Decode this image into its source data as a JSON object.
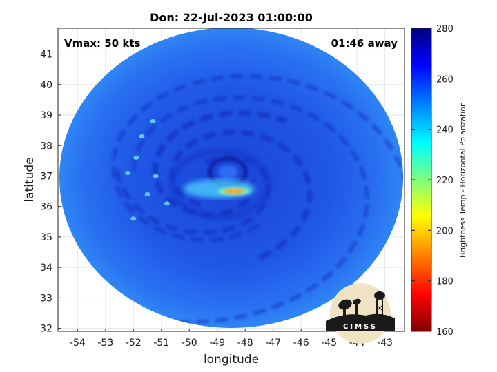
{
  "chart_data": {
    "type": "heatmap",
    "title": "Don: 22-Jul-2023 01:00:00",
    "xlabel": "longitude",
    "ylabel": "latitude",
    "xlim": [
      -54.7,
      -42.3
    ],
    "ylim": [
      31.9,
      41.85
    ],
    "xticks": [
      -54,
      -53,
      -52,
      -51,
      -50,
      -49,
      -48,
      -47,
      -46,
      -45,
      -44,
      -43
    ],
    "yticks": [
      32,
      33,
      34,
      35,
      36,
      37,
      38,
      39,
      40,
      41
    ],
    "grid": true,
    "storm_center": {
      "lon": -48.9,
      "lat": 36.85
    },
    "warm_core": {
      "lon": -48.4,
      "lat": 36.5,
      "value": 190
    },
    "annotations": {
      "vmax": "Vmax: 50 kts",
      "time_away": "01:46 away"
    },
    "colorbar": {
      "label": "Brightness Temp - Horizontal Polarization",
      "range": [
        160,
        280
      ],
      "ticks": [
        160,
        180,
        200,
        220,
        240,
        260,
        280
      ],
      "colormap": "jet",
      "background_value": 255
    }
  },
  "logo": {
    "text": "CIMSS"
  },
  "colors": {
    "background": "#ffffff",
    "grid": "#e6e6e6",
    "field_base": "#1f52e8"
  }
}
